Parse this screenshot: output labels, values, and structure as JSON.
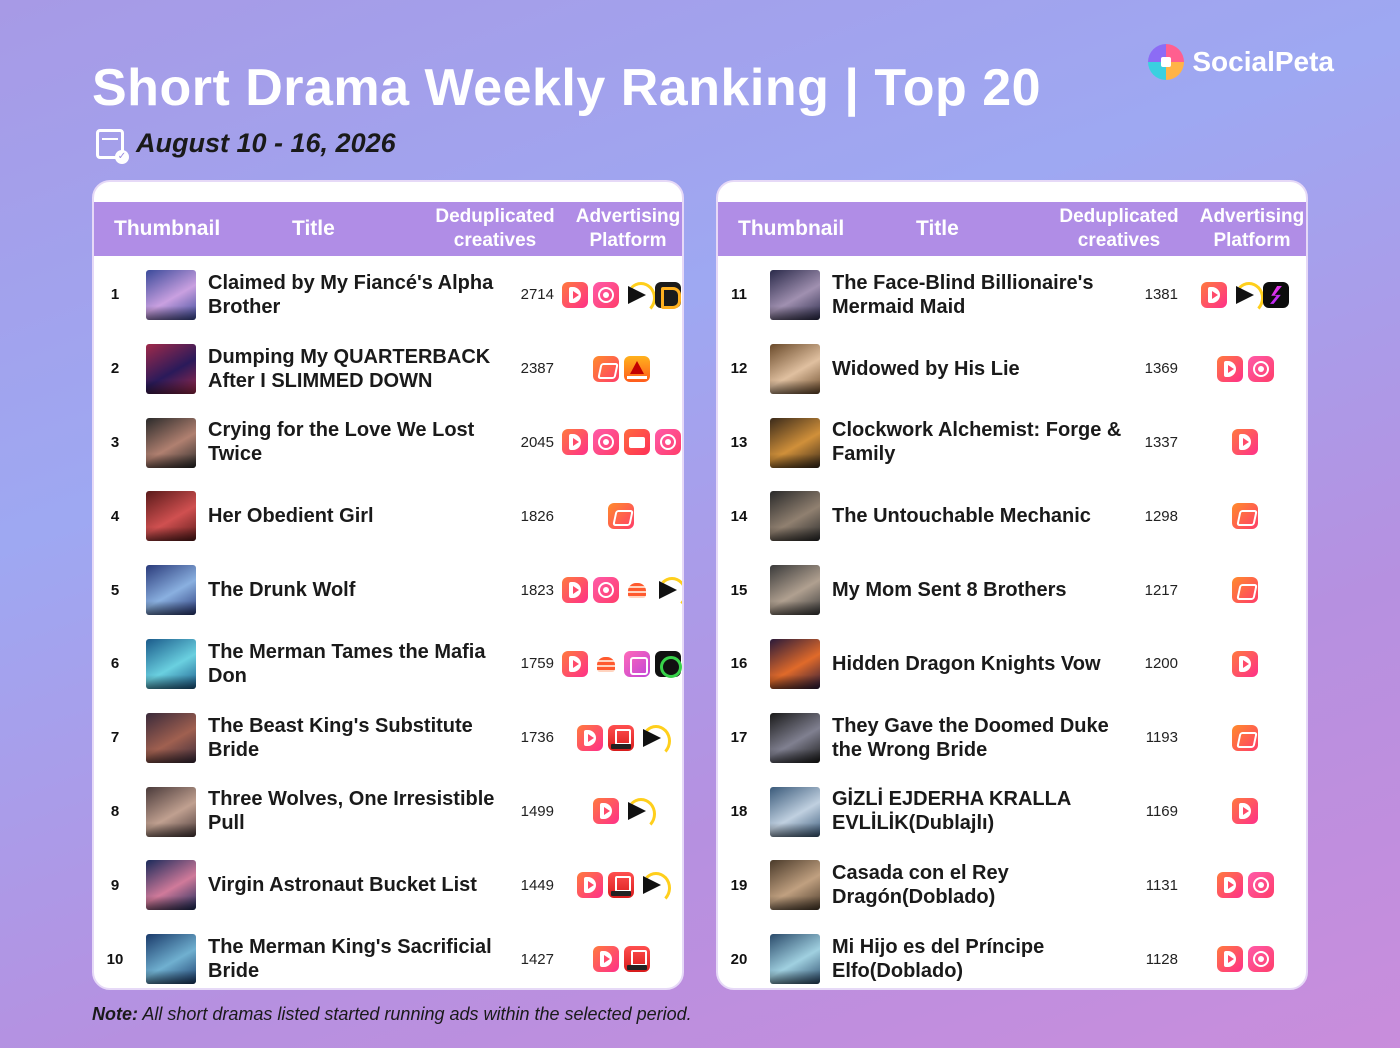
{
  "header": {
    "title": "Short Drama Weekly Ranking | Top 20",
    "date": "August 10 - 16, 2026",
    "brand": "SocialPeta"
  },
  "columns": {
    "thumbnail": "Thumbnail",
    "title": "Title",
    "dedup_line1": "Deduplicated",
    "dedup_line2": "creatives",
    "adv_line1": "Advertising",
    "adv_line2": "Platform"
  },
  "colors": {
    "header_bar": "#b08de6",
    "background_start": "#a79ae6",
    "background_end": "#c98ddc"
  },
  "left_rows": [
    {
      "rank": "1",
      "title": "Claimed by My Fiancé's Alpha Brother",
      "count": "2714",
      "thumb": [
        "#3a4a9a",
        "#c9a0e0"
      ],
      "platforms": [
        "dshort",
        "reel",
        "play",
        "dtv"
      ]
    },
    {
      "rank": "2",
      "title": "Dumping My QUARTERBACK After I SLIMMED DOWN",
      "count": "2387",
      "thumb": [
        "#a02a4a",
        "#2a1a5a"
      ],
      "platforms": [
        "moboreels",
        "shortmax"
      ]
    },
    {
      "rank": "3",
      "title": "Crying for the Love We Lost Twice",
      "count": "2045",
      "thumb": [
        "#2a2a2a",
        "#b08070"
      ],
      "platforms": [
        "dshort",
        "reel",
        "goodshort",
        "reel"
      ]
    },
    {
      "rank": "4",
      "title": "Her Obedient Girl",
      "count": "1826",
      "thumb": [
        "#5a1a1a",
        "#d05050"
      ],
      "platforms": [
        "moboreels"
      ]
    },
    {
      "rank": "5",
      "title": "The Drunk Wolf",
      "count": "1823",
      "thumb": [
        "#2a3a7a",
        "#8ab0e0"
      ],
      "platforms": [
        "dshort",
        "reel",
        "burger",
        "play"
      ]
    },
    {
      "rank": "6",
      "title": "The Merman Tames the Mafia Don",
      "count": "1759",
      "thumb": [
        "#1a5a8a",
        "#6ad0e0"
      ],
      "platforms": [
        "dshort",
        "burger",
        "idrama",
        "dgreen"
      ]
    },
    {
      "rank": "7",
      "title": "The Beast King's Substitute Bride",
      "count": "1736",
      "thumb": [
        "#3a2a3a",
        "#a06050"
      ],
      "platforms": [
        "dshort",
        "series",
        "play"
      ]
    },
    {
      "rank": "8",
      "title": "Three Wolves, One Irresistible Pull",
      "count": "1499",
      "thumb": [
        "#4a3a3a",
        "#c0a090"
      ],
      "platforms": [
        "dshort",
        "play"
      ]
    },
    {
      "rank": "9",
      "title": "Virgin Astronaut Bucket List",
      "count": "1449",
      "thumb": [
        "#1a2a5a",
        "#d07a9a"
      ],
      "platforms": [
        "dshort",
        "series",
        "play"
      ]
    },
    {
      "rank": "10",
      "title": "The Merman King's Sacrificial Bride",
      "count": "1427",
      "thumb": [
        "#1a3a6a",
        "#70b0d0"
      ],
      "platforms": [
        "dshort",
        "series"
      ]
    }
  ],
  "right_rows": [
    {
      "rank": "11",
      "title": "The Face-Blind Billionaire's Mermaid Maid",
      "count": "1381",
      "thumb": [
        "#2a2a4a",
        "#a090b0"
      ],
      "platforms": [
        "dshort",
        "play",
        "flick"
      ]
    },
    {
      "rank": "12",
      "title": "Widowed by His Lie",
      "count": "1369",
      "thumb": [
        "#6a4a2a",
        "#e0c0a0"
      ],
      "platforms": [
        "dshort",
        "reel"
      ]
    },
    {
      "rank": "13",
      "title": "Clockwork Alchemist: Forge & Family",
      "count": "1337",
      "thumb": [
        "#3a2a1a",
        "#d0903a"
      ],
      "platforms": [
        "dshort"
      ]
    },
    {
      "rank": "14",
      "title": "The Untouchable Mechanic",
      "count": "1298",
      "thumb": [
        "#2a2a2a",
        "#908070"
      ],
      "platforms": [
        "moboreels"
      ]
    },
    {
      "rank": "15",
      "title": "My Mom Sent 8 Brothers",
      "count": "1217",
      "thumb": [
        "#3a3a3a",
        "#b0a090"
      ],
      "platforms": [
        "moboreels"
      ]
    },
    {
      "rank": "16",
      "title": "Hidden Dragon Knights Vow",
      "count": "1200",
      "thumb": [
        "#2a1a3a",
        "#e06a2a"
      ],
      "platforms": [
        "dshort"
      ]
    },
    {
      "rank": "17",
      "title": "They Gave the Doomed Duke the Wrong Bride",
      "count": "1193",
      "thumb": [
        "#1a1a1a",
        "#808090"
      ],
      "platforms": [
        "moboreels"
      ]
    },
    {
      "rank": "18",
      "title": "GİZLİ EJDERHA KRALLA EVLİLİK(Dublajlı)",
      "count": "1169",
      "thumb": [
        "#3a5a7a",
        "#c0d0e0"
      ],
      "platforms": [
        "dshort"
      ]
    },
    {
      "rank": "19",
      "title": "Casada con el Rey Dragón(Doblado)",
      "count": "1131",
      "thumb": [
        "#4a3a2a",
        "#c0a080"
      ],
      "platforms": [
        "dshort",
        "reel"
      ]
    },
    {
      "rank": "20",
      "title": "Mi Hijo es del Príncipe Elfo(Doblado)",
      "count": "1128",
      "thumb": [
        "#2a4a6a",
        "#a0d0e0"
      ],
      "platforms": [
        "dshort",
        "reel"
      ]
    }
  ],
  "note": {
    "label": "Note:",
    "text": " All short dramas listed started running ads within the selected period."
  }
}
